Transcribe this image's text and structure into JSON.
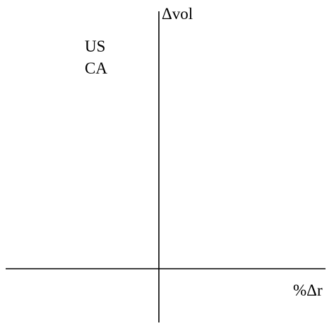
{
  "axes": {
    "y_label": "Δvol",
    "x_label": "%Δr"
  },
  "labels": [
    "US",
    "CA"
  ]
}
